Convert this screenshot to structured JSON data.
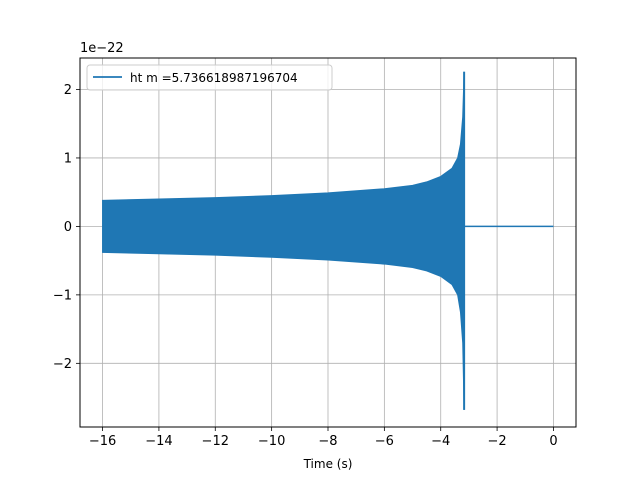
{
  "chart_data": {
    "type": "line",
    "title": "",
    "xlabel": "Time (s)",
    "ylabel": "",
    "y_offset_label": "1e−22",
    "xlim": [
      -16.8,
      0.8
    ],
    "ylim": [
      -2.93,
      2.46
    ],
    "x_ticks": [
      -16,
      -14,
      -12,
      -10,
      -8,
      -6,
      -4,
      -2,
      0
    ],
    "x_tick_labels": [
      "−16",
      "−14",
      "−12",
      "−10",
      "−8",
      "−6",
      "−4",
      "−2",
      "0"
    ],
    "y_ticks": [
      -2,
      -1,
      0,
      1,
      2
    ],
    "y_tick_labels": [
      "−2",
      "−1",
      "0",
      "1",
      "2"
    ],
    "grid": true,
    "legend": {
      "position": "top-left",
      "entries": [
        "ht m =5.736618987196704"
      ]
    },
    "series": [
      {
        "name": "ht m =5.736618987196704",
        "color": "#1f77b4",
        "envelope_upper": [
          [
            -16.0,
            0.38
          ],
          [
            -14,
            0.4
          ],
          [
            -12,
            0.42
          ],
          [
            -10,
            0.45
          ],
          [
            -8,
            0.49
          ],
          [
            -6,
            0.55
          ],
          [
            -5,
            0.6
          ],
          [
            -4.5,
            0.65
          ],
          [
            -4,
            0.73
          ],
          [
            -3.6,
            0.85
          ],
          [
            -3.4,
            1.0
          ],
          [
            -3.3,
            1.2
          ],
          [
            -3.22,
            1.6
          ],
          [
            -3.17,
            2.26
          ]
        ],
        "envelope_lower": [
          [
            -16.0,
            -0.38
          ],
          [
            -14,
            -0.4
          ],
          [
            -12,
            -0.42
          ],
          [
            -10,
            -0.45
          ],
          [
            -8,
            -0.49
          ],
          [
            -6,
            -0.55
          ],
          [
            -5,
            -0.6
          ],
          [
            -4.5,
            -0.65
          ],
          [
            -4,
            -0.73
          ],
          [
            -3.6,
            -0.85
          ],
          [
            -3.4,
            -1.0
          ],
          [
            -3.3,
            -1.25
          ],
          [
            -3.22,
            -1.7
          ],
          [
            -3.17,
            -2.68
          ]
        ],
        "flat_segment": [
          [
            -3.15,
            0.0
          ],
          [
            0.0,
            0.0
          ]
        ]
      }
    ]
  }
}
